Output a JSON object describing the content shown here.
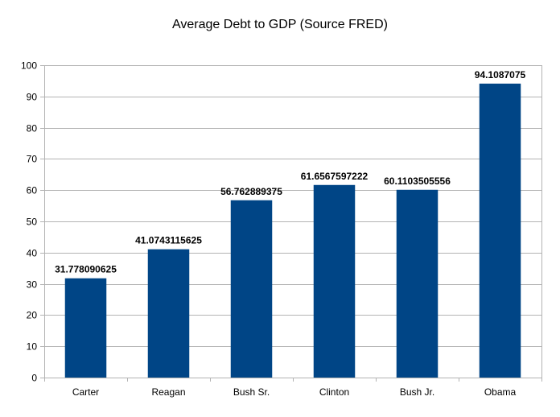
{
  "chart_data": {
    "type": "bar",
    "title": "Average Debt to GDP (Source FRED)",
    "xlabel": "",
    "ylabel": "",
    "categories": [
      "Carter",
      "Reagan",
      "Bush Sr.",
      "Clinton",
      "Bush Jr.",
      "Obama"
    ],
    "values": [
      31.778090625,
      41.0743115625,
      56.762889375,
      61.6567597222,
      60.1103505556,
      94.1087075
    ],
    "value_labels": [
      "31.778090625",
      "41.0743115625",
      "56.762889375",
      "61.6567597222",
      "60.1103505556",
      "94.1087075"
    ],
    "ylim": [
      0,
      100
    ],
    "y_ticks": [
      0,
      10,
      20,
      30,
      40,
      50,
      60,
      70,
      80,
      90,
      100
    ],
    "grid": true,
    "legend": "none",
    "colors": {
      "bar": "#004586",
      "grid": "#b3b3b3",
      "axis": "#b3b3b3"
    }
  }
}
